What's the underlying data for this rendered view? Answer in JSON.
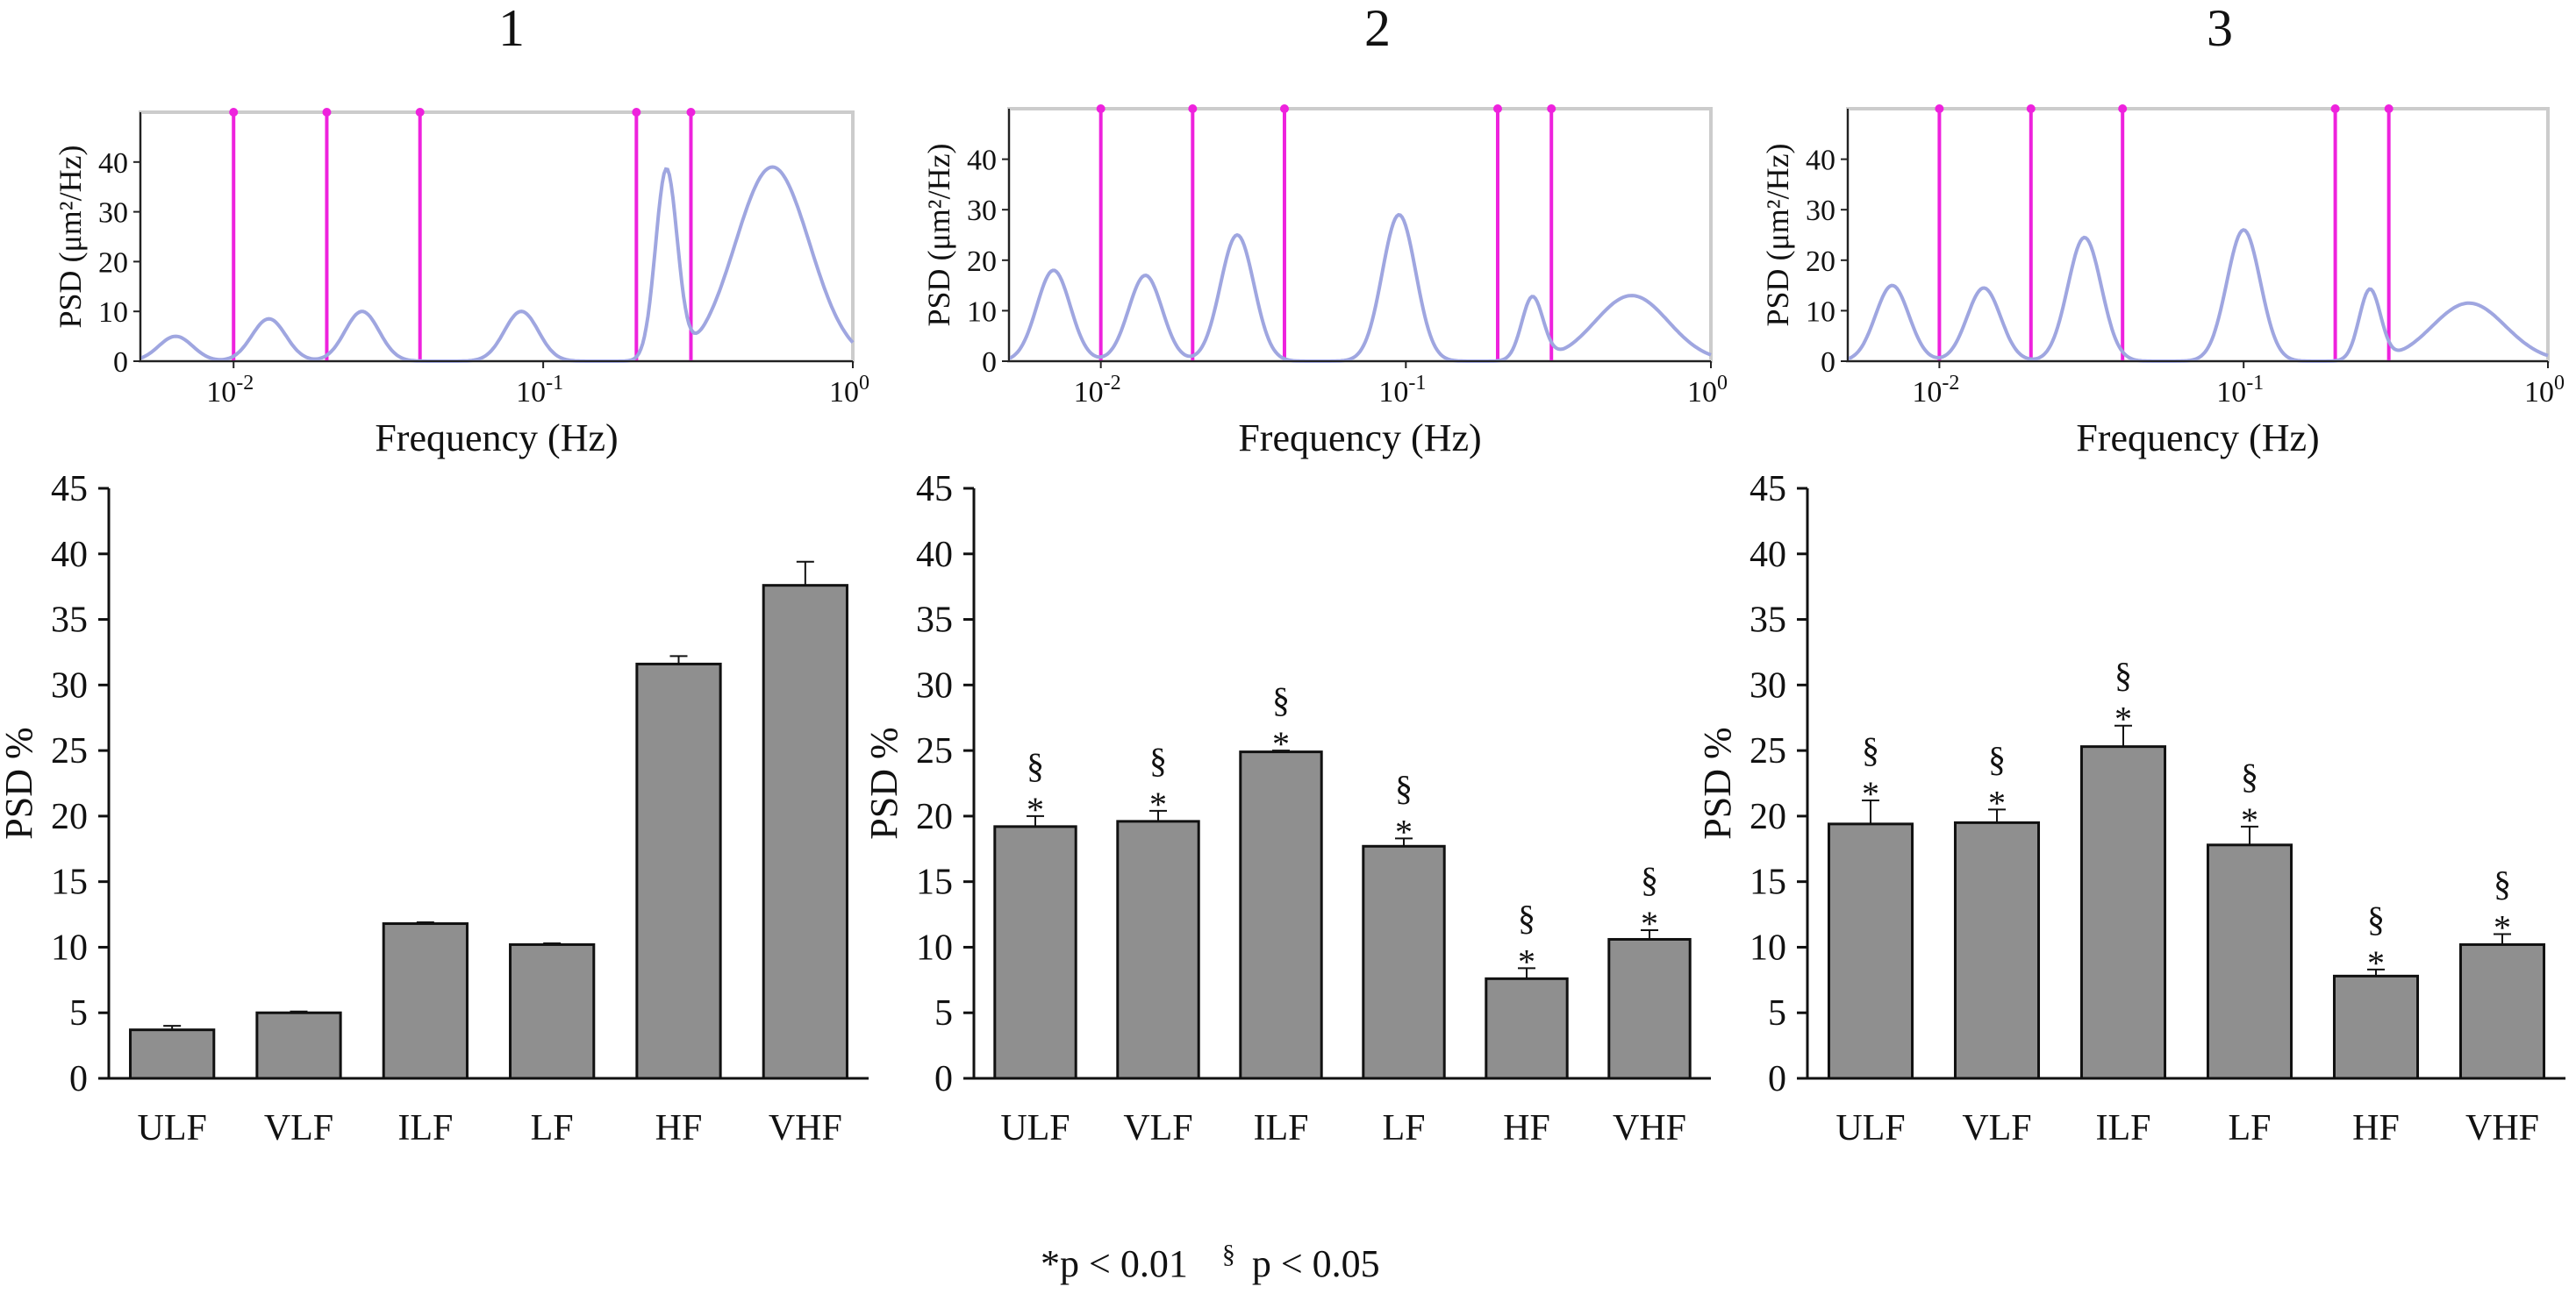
{
  "chart_data": [
    {
      "panel": "1",
      "type": "line",
      "title": "",
      "xlabel": "Frequency (Hz)",
      "ylabel": "PSD (μm²/Hz)",
      "x_scale": "log",
      "xlim": [
        0.005,
        1
      ],
      "ylim": [
        0,
        50
      ],
      "yticks": [
        0,
        10,
        20,
        30,
        40
      ],
      "xtick_labels": [
        {
          "base": "10",
          "exp": "-2"
        },
        {
          "base": "10",
          "exp": "-1"
        },
        {
          "base": "10",
          "exp": "0"
        }
      ],
      "band_boundaries_hz": [
        0.01,
        0.02,
        0.04,
        0.2,
        0.3
      ],
      "peaks": [
        {
          "freq": 0.0065,
          "psd": 5
        },
        {
          "freq": 0.013,
          "psd": 8.5
        },
        {
          "freq": 0.026,
          "psd": 10
        },
        {
          "freq": 0.085,
          "psd": 10
        },
        {
          "freq": 0.25,
          "psd": 38
        },
        {
          "freq": 0.55,
          "psd": 39
        }
      ]
    },
    {
      "panel": "2",
      "type": "line",
      "title": "",
      "xlabel": "Frequency (Hz)",
      "ylabel": "PSD (μm²/Hz)",
      "x_scale": "log",
      "xlim": [
        0.005,
        1
      ],
      "ylim": [
        0,
        50
      ],
      "yticks": [
        0,
        10,
        20,
        30,
        40
      ],
      "xtick_labels": [
        {
          "base": "10",
          "exp": "-2"
        },
        {
          "base": "10",
          "exp": "-1"
        },
        {
          "base": "10",
          "exp": "0"
        }
      ],
      "band_boundaries_hz": [
        0.01,
        0.02,
        0.04,
        0.2,
        0.3
      ],
      "peaks": [
        {
          "freq": 0.007,
          "psd": 18
        },
        {
          "freq": 0.014,
          "psd": 17
        },
        {
          "freq": 0.028,
          "psd": 25
        },
        {
          "freq": 0.095,
          "psd": 29
        },
        {
          "freq": 0.26,
          "psd": 12.5
        },
        {
          "freq": 0.55,
          "psd": 13
        }
      ]
    },
    {
      "panel": "3",
      "type": "line",
      "title": "",
      "xlabel": "Frequency (Hz)",
      "ylabel": "PSD (μm²/Hz)",
      "x_scale": "log",
      "xlim": [
        0.005,
        1
      ],
      "ylim": [
        0,
        50
      ],
      "yticks": [
        0,
        10,
        20,
        30,
        40
      ],
      "xtick_labels": [
        {
          "base": "10",
          "exp": "-2"
        },
        {
          "base": "10",
          "exp": "-1"
        },
        {
          "base": "10",
          "exp": "0"
        }
      ],
      "band_boundaries_hz": [
        0.01,
        0.02,
        0.04,
        0.2,
        0.3
      ],
      "peaks": [
        {
          "freq": 0.007,
          "psd": 15
        },
        {
          "freq": 0.014,
          "psd": 14.5
        },
        {
          "freq": 0.03,
          "psd": 24.5
        },
        {
          "freq": 0.1,
          "psd": 26
        },
        {
          "freq": 0.26,
          "psd": 14
        },
        {
          "freq": 0.55,
          "psd": 11.5
        }
      ]
    },
    {
      "panel": "1",
      "type": "bar",
      "title": "",
      "xlabel": "",
      "ylabel": "PSD %",
      "ylim": [
        0,
        45
      ],
      "yticks": [
        0,
        5,
        10,
        15,
        20,
        25,
        30,
        35,
        40,
        45
      ],
      "categories": [
        "ULF",
        "VLF",
        "ILF",
        "LF",
        "HF",
        "VHF"
      ],
      "values": [
        3.7,
        5.0,
        11.8,
        10.2,
        31.6,
        37.6
      ],
      "errors": [
        0.3,
        0.1,
        0.1,
        0.1,
        0.6,
        1.8
      ],
      "markers": [
        "",
        "",
        "",
        "",
        "",
        ""
      ]
    },
    {
      "panel": "2",
      "type": "bar",
      "title": "",
      "xlabel": "",
      "ylabel": "PSD %",
      "ylim": [
        0,
        45
      ],
      "yticks": [
        0,
        5,
        10,
        15,
        20,
        25,
        30,
        35,
        40,
        45
      ],
      "categories": [
        "ULF",
        "VLF",
        "ILF",
        "LF",
        "HF",
        "VHF"
      ],
      "values": [
        19.2,
        19.6,
        24.9,
        17.7,
        7.6,
        10.6
      ],
      "errors": [
        0.8,
        0.8,
        0.1,
        0.6,
        0.8,
        0.7
      ],
      "markers": [
        "*§",
        "*§",
        "*§",
        "*§",
        "*§",
        "*§"
      ]
    },
    {
      "panel": "3",
      "type": "bar",
      "title": "",
      "xlabel": "",
      "ylabel": "PSD %",
      "ylim": [
        0,
        45
      ],
      "yticks": [
        0,
        5,
        10,
        15,
        20,
        25,
        30,
        35,
        40,
        45
      ],
      "categories": [
        "ULF",
        "VLF",
        "ILF",
        "LF",
        "HF",
        "VHF"
      ],
      "values": [
        19.4,
        19.5,
        25.3,
        17.8,
        7.8,
        10.2
      ],
      "errors": [
        1.8,
        1.0,
        1.6,
        1.4,
        0.5,
        0.8
      ],
      "markers": [
        "*§",
        "*§",
        "*§",
        "*§",
        "*§",
        "*§"
      ]
    }
  ],
  "footnote": {
    "star_text": "*p < 0.01",
    "section_symbol": "§",
    "section_text": "p < 0.05"
  },
  "colors": {
    "bar_fill": "#8f8f8f",
    "curve": "#9fa6e0",
    "band_line": "#ee22dd",
    "frame": "#cccccc"
  }
}
